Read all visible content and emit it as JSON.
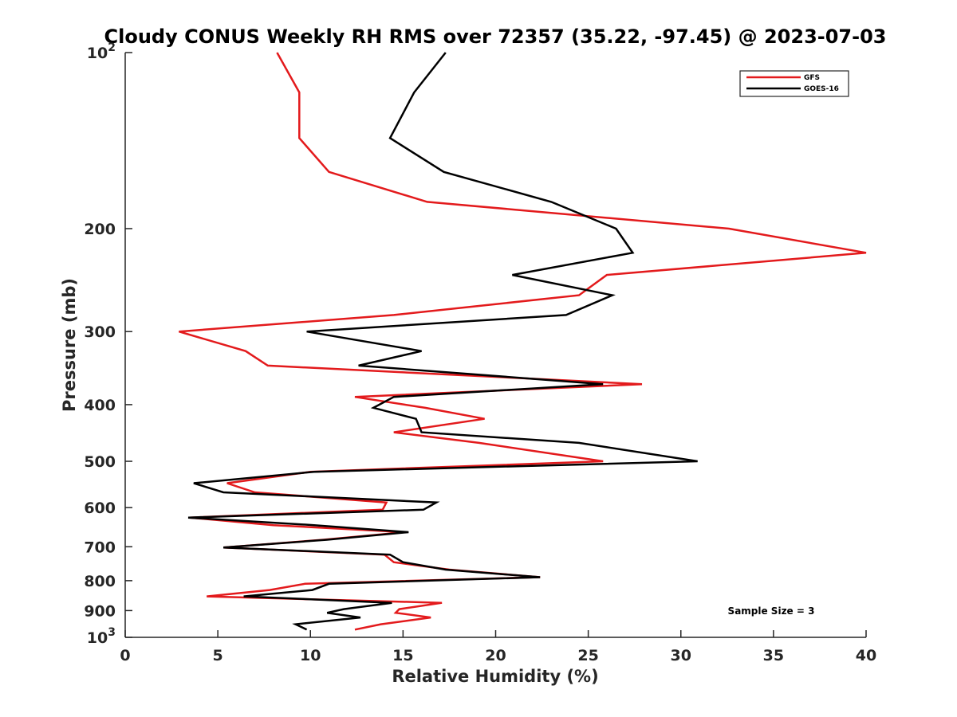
{
  "chart_data": {
    "type": "line",
    "title": "Cloudy CONUS Weekly RH RMS over 72357 (35.22, -97.45) @ 2023-07-03",
    "xlabel": "Relative Humidity (%)",
    "ylabel": "Pressure (mb)",
    "xlim": [
      0,
      40
    ],
    "ylim": [
      100,
      1000
    ],
    "y_scale": "log",
    "y_reversed": true,
    "x_ticks": [
      "0",
      "5",
      "10",
      "15",
      "20",
      "25",
      "30",
      "35",
      "40"
    ],
    "y_ticks": [
      {
        "value": 100,
        "label": "10",
        "sup": "2"
      },
      {
        "value": 200,
        "label": "200",
        "sup": ""
      },
      {
        "value": 300,
        "label": "300",
        "sup": ""
      },
      {
        "value": 400,
        "label": "400",
        "sup": ""
      },
      {
        "value": 500,
        "label": "500",
        "sup": ""
      },
      {
        "value": 600,
        "label": "600",
        "sup": ""
      },
      {
        "value": 700,
        "label": "700",
        "sup": ""
      },
      {
        "value": 800,
        "label": "800",
        "sup": ""
      },
      {
        "value": 900,
        "label": "900",
        "sup": ""
      },
      {
        "value": 1000,
        "label": "10",
        "sup": "3"
      }
    ],
    "grid": false,
    "legend_position": "top-right",
    "annotation": "Sample Size = 3",
    "series": [
      {
        "name": "GFS",
        "color": "#e31a1c",
        "points": [
          [
            8.2,
            100
          ],
          [
            9.4,
            117
          ],
          [
            9.4,
            140
          ],
          [
            11.0,
            160
          ],
          [
            16.3,
            180
          ],
          [
            32.6,
            200
          ],
          [
            40.0,
            220
          ],
          [
            26.0,
            240
          ],
          [
            24.5,
            260
          ],
          [
            14.5,
            281
          ],
          [
            2.9,
            300
          ],
          [
            6.5,
            324
          ],
          [
            7.7,
            343
          ],
          [
            27.9,
            369
          ],
          [
            12.4,
            388
          ],
          [
            16.2,
            405
          ],
          [
            19.4,
            423
          ],
          [
            14.5,
            446
          ],
          [
            19.1,
            465
          ],
          [
            25.8,
            500
          ],
          [
            10.0,
            521
          ],
          [
            5.5,
            545
          ],
          [
            7.0,
            565
          ],
          [
            14.1,
            588
          ],
          [
            13.9,
            605
          ],
          [
            3.5,
            624
          ],
          [
            8.0,
            643
          ],
          [
            15.1,
            661
          ],
          [
            10.7,
            681
          ],
          [
            5.3,
            702
          ],
          [
            14.0,
            722
          ],
          [
            14.5,
            744
          ],
          [
            17.5,
            766
          ],
          [
            22.4,
            789
          ],
          [
            9.7,
            810
          ],
          [
            7.8,
            830
          ],
          [
            4.4,
            851
          ],
          [
            17.1,
            873
          ],
          [
            14.8,
            895
          ],
          [
            14.6,
            908
          ],
          [
            16.5,
            925
          ],
          [
            13.8,
            950
          ],
          [
            12.4,
            970
          ]
        ]
      },
      {
        "name": "GOES-16",
        "color": "#000000",
        "points": [
          [
            17.3,
            100
          ],
          [
            15.6,
            117
          ],
          [
            14.3,
            140
          ],
          [
            17.2,
            160
          ],
          [
            23.0,
            180
          ],
          [
            26.5,
            200
          ],
          [
            27.4,
            220
          ],
          [
            20.9,
            240
          ],
          [
            26.3,
            260
          ],
          [
            23.8,
            281
          ],
          [
            9.8,
            300
          ],
          [
            16.0,
            324
          ],
          [
            12.6,
            343
          ],
          [
            25.8,
            369
          ],
          [
            14.5,
            388
          ],
          [
            13.4,
            405
          ],
          [
            15.7,
            423
          ],
          [
            16.0,
            446
          ],
          [
            24.5,
            465
          ],
          [
            30.9,
            500
          ],
          [
            10.2,
            521
          ],
          [
            3.7,
            545
          ],
          [
            5.3,
            565
          ],
          [
            16.8,
            588
          ],
          [
            16.1,
            605
          ],
          [
            3.4,
            624
          ],
          [
            10.2,
            643
          ],
          [
            15.3,
            661
          ],
          [
            10.9,
            681
          ],
          [
            5.3,
            702
          ],
          [
            14.3,
            722
          ],
          [
            15.0,
            744
          ],
          [
            17.3,
            766
          ],
          [
            22.4,
            789
          ],
          [
            11.0,
            810
          ],
          [
            10.1,
            830
          ],
          [
            6.4,
            851
          ],
          [
            14.4,
            873
          ],
          [
            11.8,
            895
          ],
          [
            10.9,
            908
          ],
          [
            12.7,
            925
          ],
          [
            9.2,
            950
          ],
          [
            9.8,
            970
          ]
        ]
      }
    ]
  }
}
